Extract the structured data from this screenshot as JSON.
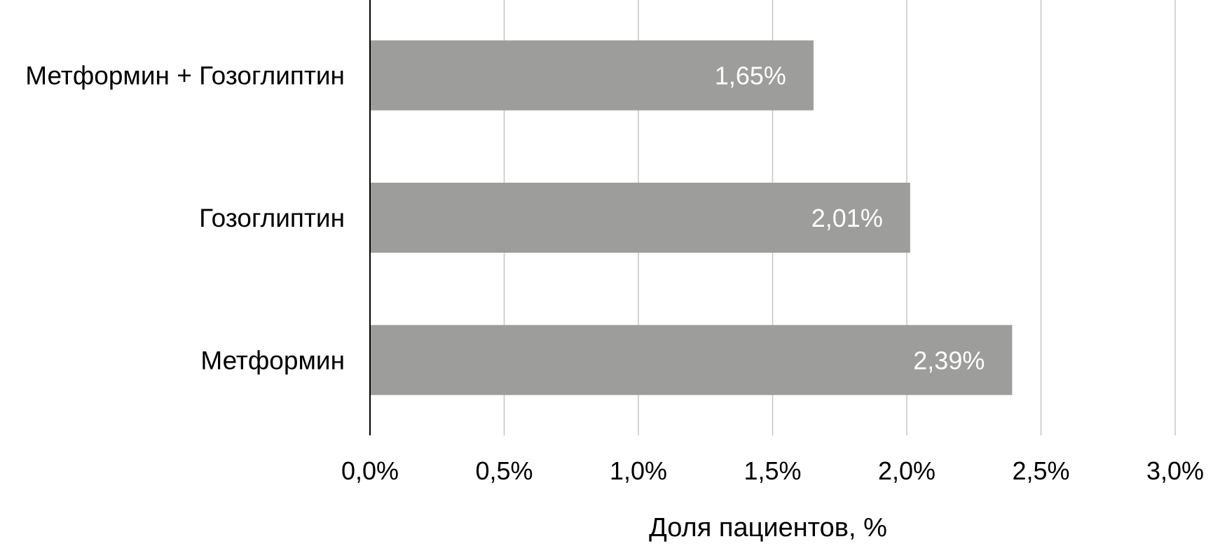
{
  "chart_data": {
    "type": "bar",
    "orientation": "horizontal",
    "title": "",
    "categories": [
      "Метформин + Гозоглиптин",
      "Гозоглиптин",
      "Метформин"
    ],
    "values": [
      1.65,
      2.01,
      2.39
    ],
    "data_labels": [
      "1,65%",
      "2,01%",
      "2,39%"
    ],
    "xlabel": "Доля пациентов, %",
    "ylabel": "",
    "xlim": [
      0,
      3.0
    ],
    "xticks": [
      0,
      0.5,
      1.0,
      1.5,
      2.0,
      2.5,
      3.0
    ],
    "xtick_labels": [
      "0,0%",
      "0,5%",
      "1,0%",
      "1,5%",
      "2,0%",
      "2,5%",
      "3,0%"
    ],
    "grid": "vertical",
    "legend": "none",
    "colors": {
      "bar": "#9d9d9c",
      "grid": "#c6c6c6",
      "axis": "#000000",
      "label_inside": "#ffffff",
      "text": "#000000"
    }
  }
}
